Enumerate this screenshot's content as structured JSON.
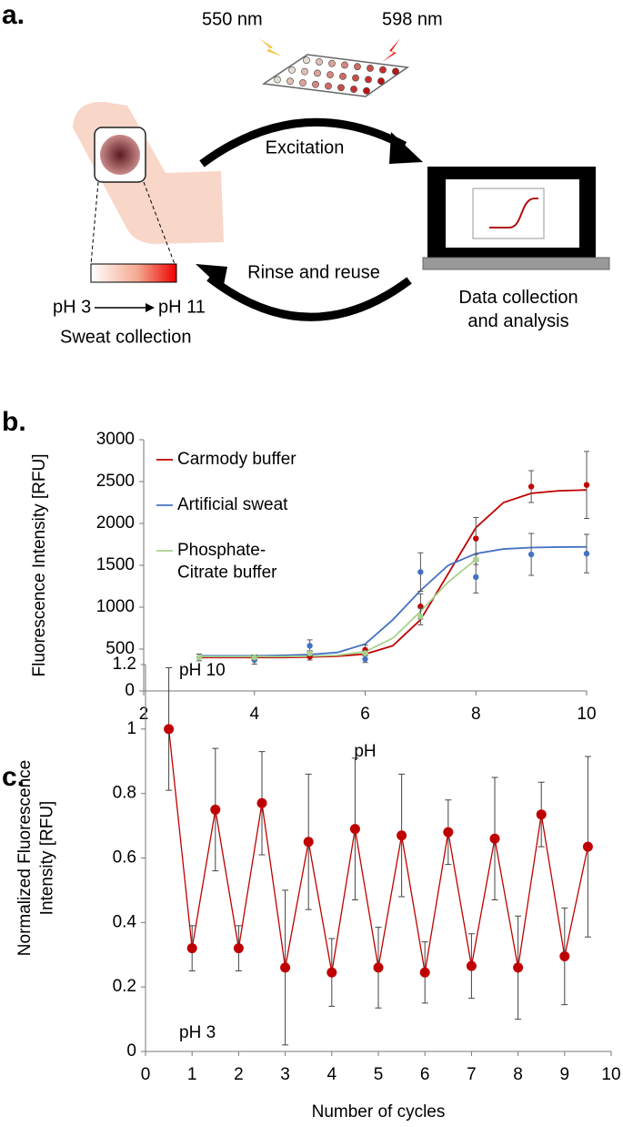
{
  "panel_labels": [
    "a.",
    "b.",
    "c."
  ],
  "diagram": {
    "excitation_wavelength": "550 nm",
    "emission_wavelength": "598 nm",
    "arrow_top": "Excitation",
    "arrow_bottom": "Rinse and reuse",
    "device_caption": "Data collection\nand analysis",
    "gradient_start": "pH 3",
    "gradient_end": "pH 11",
    "sensor_caption": "Sweat collection"
  },
  "chart_data": [
    {
      "type": "scatter",
      "xlabel": "pH",
      "ylabel": "Fluorescence Intensity [RFU]",
      "xlim": [
        2,
        10
      ],
      "xticks": [
        2,
        4,
        6,
        8,
        10
      ],
      "ylim": [
        0,
        3000
      ],
      "yticks": [
        0,
        500,
        1000,
        1500,
        2000,
        2500,
        3000
      ],
      "legend": "upper left",
      "series": [
        {
          "name": "Carmody buffer",
          "color": "#c00000",
          "x": [
            4,
            5,
            6,
            7,
            8,
            9,
            10
          ],
          "values": [
            400,
            410,
            490,
            1010,
            1820,
            2440,
            2460
          ],
          "errors": [
            30,
            40,
            60,
            150,
            250,
            190,
            400
          ],
          "fit": {
            "x": [
              3,
              3.5,
              4,
              4.5,
              5,
              5.5,
              6,
              6.5,
              7,
              7.5,
              8,
              8.5,
              9,
              9.5,
              10
            ],
            "values": [
              400,
              400,
              400,
              400,
              405,
              415,
              440,
              540,
              850,
              1400,
              1950,
              2250,
              2360,
              2390,
              2400
            ]
          }
        },
        {
          "name": "Artificial sweat",
          "color": "#4472c4",
          "x": [
            4,
            5,
            6,
            7,
            8,
            9,
            10
          ],
          "values": [
            370,
            540,
            380,
            1420,
            1360,
            1630,
            1640
          ],
          "errors": [
            50,
            70,
            40,
            230,
            190,
            250,
            230
          ],
          "fit": {
            "x": [
              3,
              3.5,
              4,
              4.5,
              5,
              5.5,
              6,
              6.5,
              7,
              7.5,
              8,
              8.5,
              9,
              9.5,
              10
            ],
            "values": [
              420,
              420,
              420,
              425,
              435,
              460,
              560,
              850,
              1200,
              1500,
              1640,
              1695,
              1712,
              1718,
              1720
            ]
          }
        },
        {
          "name": "Phosphate-\nCitrate buffer",
          "color": "#a9d18e",
          "x": [
            3,
            4,
            5,
            6,
            7,
            8
          ],
          "values": [
            400,
            400,
            450,
            450,
            890,
            1570
          ],
          "errors": [
            40,
            30,
            30,
            30,
            100,
            60
          ],
          "fit": {
            "x": [
              3,
              3.5,
              4,
              4.5,
              5,
              5.5,
              6,
              6.5,
              7,
              7.5,
              8
            ],
            "values": [
              410,
              410,
              410,
              410,
              415,
              425,
              470,
              630,
              950,
              1300,
              1570
            ]
          }
        }
      ]
    },
    {
      "type": "line",
      "xlabel": "Number of cycles",
      "ylabel": "Normalized Fluorescence\nIntensity [RFU]",
      "xlim": [
        0,
        10
      ],
      "xticks": [
        0,
        1,
        2,
        3,
        4,
        5,
        6,
        7,
        8,
        9,
        10
      ],
      "ylim": [
        0,
        1.2
      ],
      "yticks": [
        0,
        0.2,
        0.4,
        0.6,
        0.8,
        1,
        1.2
      ],
      "annotations": [
        "pH 10",
        "pH 3"
      ],
      "series": [
        {
          "color": "#c00000",
          "x": [
            0.5,
            1,
            1.5,
            2,
            2.5,
            3,
            3.5,
            4,
            4.5,
            5,
            5.5,
            6,
            6.5,
            7,
            7.5,
            8,
            8.5,
            9,
            9.5
          ],
          "values": [
            1,
            0.32,
            0.75,
            0.32,
            0.77,
            0.26,
            0.65,
            0.245,
            0.69,
            0.26,
            0.67,
            0.245,
            0.68,
            0.265,
            0.66,
            0.26,
            0.735,
            0.295,
            0.635
          ],
          "errors": [
            0.19,
            0.07,
            0.19,
            0.07,
            0.16,
            0.24,
            0.21,
            0.105,
            0.22,
            0.125,
            0.19,
            0.095,
            0.1,
            0.1,
            0.19,
            0.16,
            0.1,
            0.15,
            0.28
          ]
        }
      ]
    }
  ]
}
